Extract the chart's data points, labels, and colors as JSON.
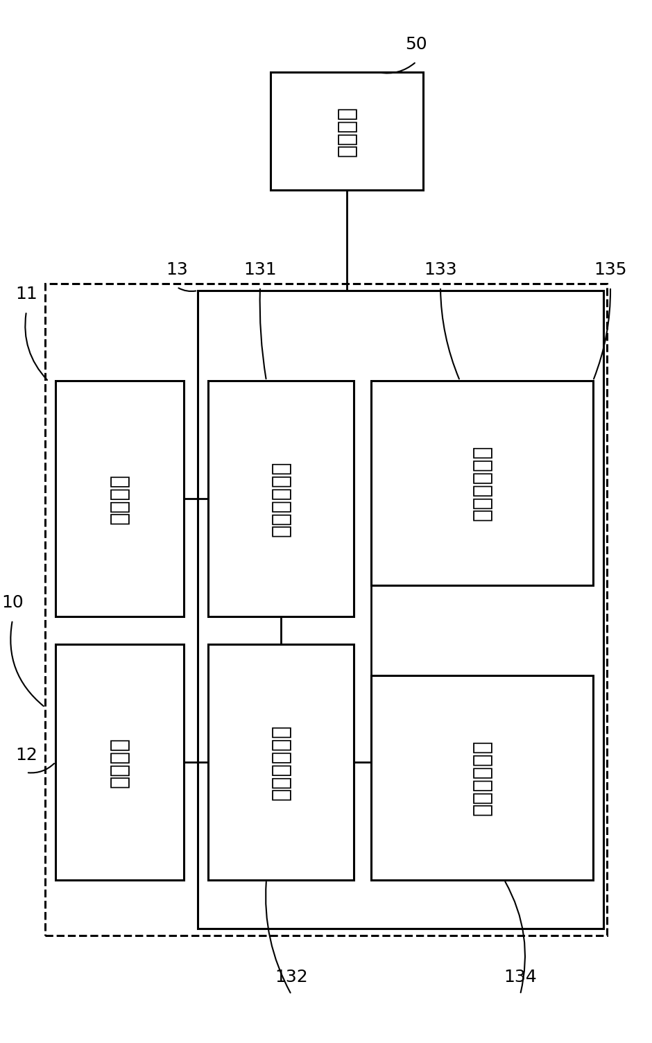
{
  "bg_color": "#ffffff",
  "line_color": "#000000",
  "boxes": {
    "security": {
      "label": "保全设备"
    },
    "display": {
      "label": "显示单元"
    },
    "camera": {
      "label": "摄像单元"
    },
    "image_out": {
      "label": "影像输出模块"
    },
    "data_stor": {
      "label": "数据储存模块"
    },
    "iris": {
      "label": "虹膜辨识模块"
    },
    "eye_mov": {
      "label": "眼动分析模块"
    }
  },
  "ref_labels": [
    "50",
    "10",
    "11",
    "12",
    "13",
    "131",
    "132",
    "133",
    "134",
    "135"
  ]
}
